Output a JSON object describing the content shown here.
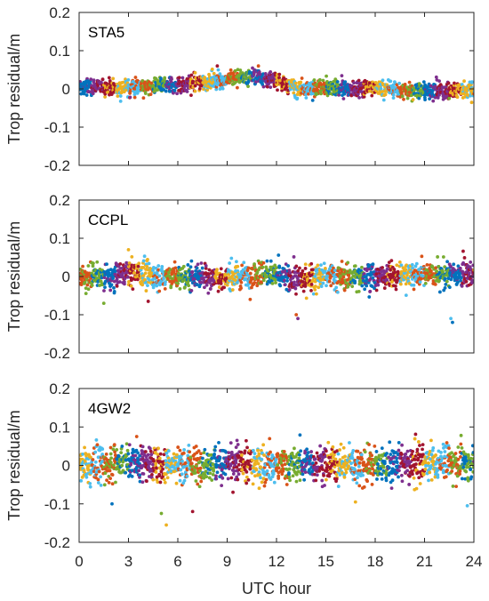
{
  "chart_data": {
    "type": "scatter",
    "shared_xlabel": "UTC hour",
    "x_ticks": [
      0,
      3,
      6,
      9,
      12,
      15,
      18,
      21,
      24
    ],
    "xlim": [
      0,
      24
    ],
    "series_colors": [
      "#0072BD",
      "#D95319",
      "#EDB120",
      "#7E2F8E",
      "#77AC30",
      "#4DBEEE",
      "#A2142F"
    ],
    "panels": [
      {
        "title": "STA5",
        "ylabel": "Trop residual/m",
        "ylim": [
          -0.2,
          0.2
        ],
        "y_ticks": [
          "0.2",
          "0.1",
          "0",
          "-0.1",
          "-0.2"
        ],
        "y_tick_values": [
          0.2,
          0.1,
          0,
          -0.1,
          -0.2
        ],
        "trend": [
          [
            0,
            0.005
          ],
          [
            2,
            0.005
          ],
          [
            4,
            0.005
          ],
          [
            6,
            0.01
          ],
          [
            8,
            0.02
          ],
          [
            9,
            0.025
          ],
          [
            10,
            0.03
          ],
          [
            11,
            0.03
          ],
          [
            12,
            0.02
          ],
          [
            13,
            0.005
          ],
          [
            15,
            0.0
          ],
          [
            18,
            0.0
          ],
          [
            21,
            -0.005
          ],
          [
            24,
            -0.003
          ]
        ],
        "spread": 0.012,
        "outliers": [
          [
            14.2,
            -0.03
          ],
          [
            20.3,
            -0.028
          ],
          [
            22.5,
            -0.025
          ],
          [
            8.4,
            0.06
          ],
          [
            10.9,
            0.06
          ],
          [
            3.1,
            -0.022
          ]
        ]
      },
      {
        "title": "CCPL",
        "ylabel": "Trop residual/m",
        "ylim": [
          -0.2,
          0.2
        ],
        "y_ticks": [
          "0.2",
          "0.1",
          "0",
          "-0.1",
          "-0.2"
        ],
        "y_tick_values": [
          0.2,
          0.1,
          0,
          -0.1,
          -0.2
        ],
        "trend": [
          [
            0,
            0.0
          ],
          [
            2,
            0.0
          ],
          [
            3,
            0.01
          ],
          [
            5,
            0.0
          ],
          [
            6,
            0.0
          ],
          [
            9,
            -0.005
          ],
          [
            11,
            0.01
          ],
          [
            12,
            0.0
          ],
          [
            13,
            -0.01
          ],
          [
            15,
            0.0
          ],
          [
            18,
            0.0
          ],
          [
            21,
            0.005
          ],
          [
            24,
            0.005
          ]
        ],
        "spread": 0.018,
        "outliers": [
          [
            13.2,
            -0.1
          ],
          [
            13.3,
            -0.11
          ],
          [
            22.6,
            -0.11
          ],
          [
            22.7,
            -0.12
          ],
          [
            3.0,
            0.07
          ],
          [
            1.5,
            -0.07
          ],
          [
            4.2,
            -0.065
          ],
          [
            10.4,
            -0.06
          ]
        ]
      },
      {
        "title": "4GW2",
        "ylabel": "Trop residual/m",
        "ylim": [
          -0.2,
          0.2
        ],
        "y_ticks": [
          "0.2",
          "0.1",
          "0",
          "-0.1",
          "-0.2"
        ],
        "y_tick_values": [
          0.2,
          0.1,
          0,
          -0.1,
          -0.2
        ],
        "trend": [
          [
            0,
            -0.005
          ],
          [
            3,
            0.01
          ],
          [
            6,
            0.0
          ],
          [
            9,
            0.005
          ],
          [
            12,
            0.0
          ],
          [
            15,
            0.005
          ],
          [
            18,
            0.0
          ],
          [
            21,
            0.005
          ],
          [
            24,
            0.005
          ]
        ],
        "spread": 0.025,
        "outliers": [
          [
            5.3,
            -0.155
          ],
          [
            5.0,
            -0.125
          ],
          [
            6.9,
            -0.12
          ],
          [
            3.5,
            0.075
          ],
          [
            9.6,
            0.065
          ],
          [
            23.6,
            -0.105
          ],
          [
            2.0,
            -0.1
          ],
          [
            16.8,
            -0.095
          ]
        ]
      }
    ]
  }
}
